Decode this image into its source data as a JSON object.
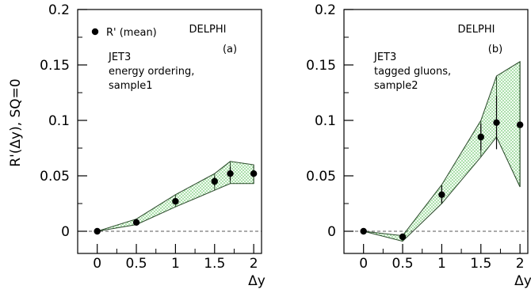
{
  "figure": {
    "ylabel": "R'(Δy), SQ=0",
    "xlabel": "Δy"
  },
  "chart_data": [
    {
      "type": "scatter",
      "panel_label": "(a)",
      "experiment": "DELPHI",
      "legend": "R' (mean)",
      "text_lines": [
        "JET3",
        "energy ordering,",
        "sample1"
      ],
      "xlim": [
        -0.25,
        2.1
      ],
      "ylim": [
        -0.02,
        0.2
      ],
      "xticks": [
        0,
        0.5,
        1,
        1.5,
        2
      ],
      "xtick_labels": [
        "0",
        "0.5",
        "1",
        "1.5",
        "2"
      ],
      "yticks": [
        0,
        0.05,
        0.1,
        0.15,
        0.2
      ],
      "ytick_labels": [
        "0",
        "0.05",
        "0.1",
        "0.15",
        "0.2"
      ],
      "zero_line": true,
      "points": [
        {
          "x": 0.0,
          "y": 0.0,
          "err": 0.0
        },
        {
          "x": 0.5,
          "y": 0.008,
          "err": 0.0
        },
        {
          "x": 1.0,
          "y": 0.027,
          "err": 0.002
        },
        {
          "x": 1.5,
          "y": 0.045,
          "err": 0.004
        },
        {
          "x": 1.7,
          "y": 0.052,
          "err": 0.006
        },
        {
          "x": 2.0,
          "y": 0.052,
          "err": 0.0
        }
      ],
      "band_upper": [
        [
          0.0,
          0.0
        ],
        [
          0.5,
          0.011
        ],
        [
          1.0,
          0.033
        ],
        [
          1.5,
          0.052
        ],
        [
          1.7,
          0.063
        ],
        [
          2.0,
          0.06
        ]
      ],
      "band_lower": [
        [
          0.0,
          0.0
        ],
        [
          0.5,
          0.006
        ],
        [
          1.0,
          0.022
        ],
        [
          1.5,
          0.037
        ],
        [
          1.7,
          0.043
        ],
        [
          2.0,
          0.043
        ]
      ]
    },
    {
      "type": "scatter",
      "panel_label": "(b)",
      "experiment": "DELPHI",
      "text_lines": [
        "JET3",
        "tagged gluons,",
        "sample2"
      ],
      "xlim": [
        -0.25,
        2.1
      ],
      "ylim": [
        -0.02,
        0.2
      ],
      "xticks": [
        0,
        0.5,
        1,
        1.5,
        2
      ],
      "xtick_labels": [
        "0",
        "0.5",
        "1",
        "1.5",
        "2"
      ],
      "yticks": [
        0,
        0.05,
        0.1,
        0.15,
        0.2
      ],
      "ytick_labels": [
        "0",
        "0.05",
        "0.1",
        "0.15",
        "0.2"
      ],
      "zero_line": true,
      "points": [
        {
          "x": 0.0,
          "y": 0.0,
          "err": 0.0
        },
        {
          "x": 0.5,
          "y": -0.005,
          "err": 0.0
        },
        {
          "x": 1.0,
          "y": 0.033,
          "err": 0.008
        },
        {
          "x": 1.5,
          "y": 0.085,
          "err": 0.012
        },
        {
          "x": 1.7,
          "y": 0.098,
          "err": 0.024
        },
        {
          "x": 2.0,
          "y": 0.096,
          "err": 0.0
        }
      ],
      "band_upper": [
        [
          0.0,
          0.0
        ],
        [
          0.5,
          -0.004
        ],
        [
          1.0,
          0.042
        ],
        [
          1.5,
          0.1
        ],
        [
          1.7,
          0.14
        ],
        [
          2.0,
          0.153
        ]
      ],
      "band_lower": [
        [
          0.0,
          0.0
        ],
        [
          0.5,
          -0.009
        ],
        [
          1.0,
          0.025
        ],
        [
          1.5,
          0.067
        ],
        [
          1.7,
          0.085
        ],
        [
          2.0,
          0.04
        ]
      ]
    }
  ]
}
